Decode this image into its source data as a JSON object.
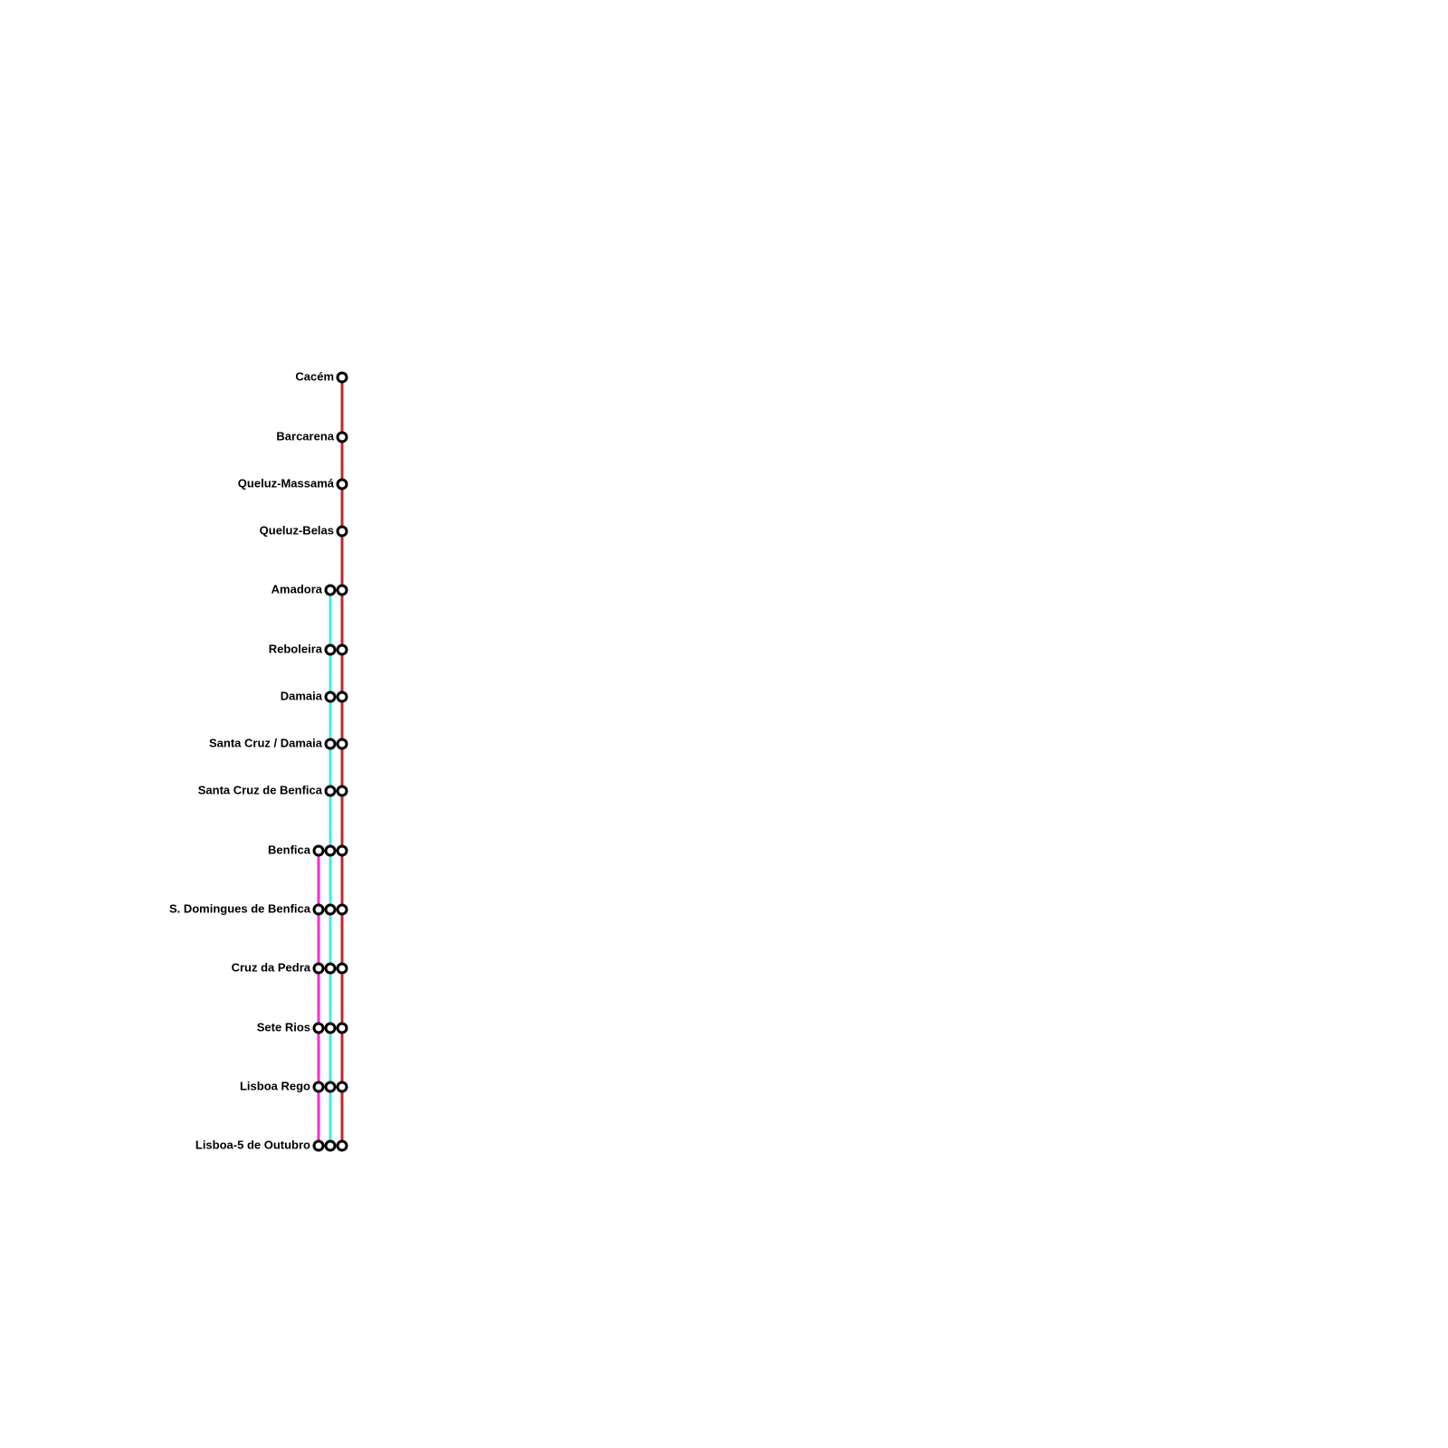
{
  "stations": [
    "Cacém",
    "Barcarena",
    "Queluz-Massamá",
    "Queluz-Belas",
    "Amadora",
    "Reboleira",
    "Damaia",
    "Santa Cruz / Damaia",
    "Santa Cruz de Benfica",
    "Benfica",
    "S. Domingues de Benfica",
    "Cruz da Pedra",
    "Sete Rios",
    "Lisboa Rego",
    "Lisboa-5 de Outubro"
  ]
}
